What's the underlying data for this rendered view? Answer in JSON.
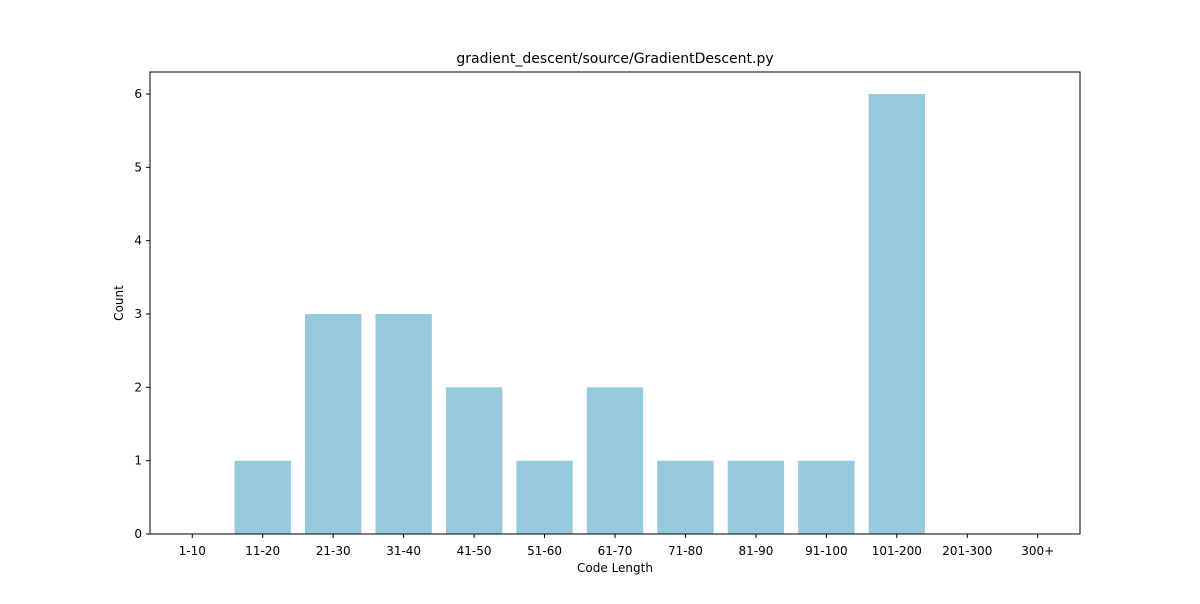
{
  "chart_data": {
    "type": "bar",
    "title": "gradient_descent/source/GradientDescent.py",
    "xlabel": "Code Length",
    "ylabel": "Count",
    "categories": [
      "1-10",
      "11-20",
      "21-30",
      "31-40",
      "41-50",
      "51-60",
      "61-70",
      "71-80",
      "81-90",
      "91-100",
      "101-200",
      "201-300",
      "300+"
    ],
    "values": [
      0,
      1,
      3,
      3,
      2,
      1,
      2,
      1,
      1,
      1,
      6,
      0,
      0
    ],
    "ylim": [
      0,
      6.3
    ],
    "yticks": [
      "0",
      "1",
      "2",
      "3",
      "4",
      "5",
      "6"
    ],
    "bar_color": "#96c9dc",
    "grid": false,
    "legend": "none"
  }
}
